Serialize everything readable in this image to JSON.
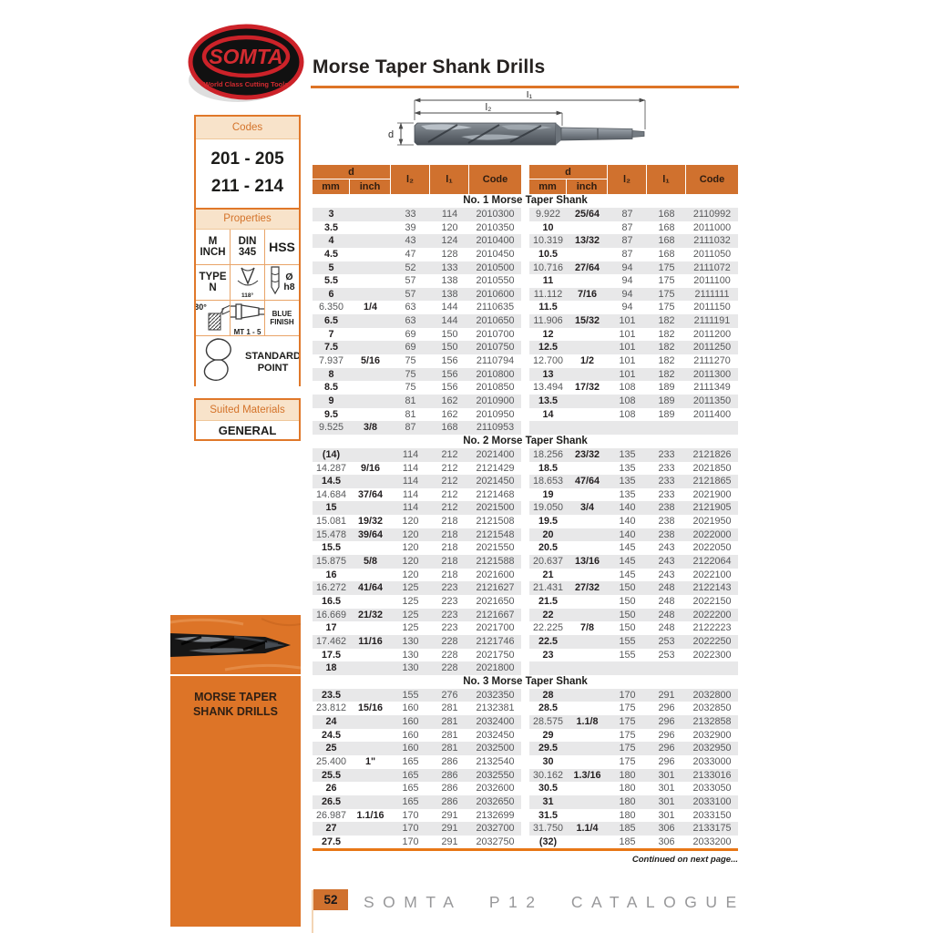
{
  "logo": {
    "name": "SOMTA",
    "tagline": "World Class Cutting Tools"
  },
  "page_title": "Morse Taper Shank Drills",
  "sidebar": {
    "codes": {
      "title": "Codes",
      "lines": [
        "201 - 205",
        "211 - 214"
      ]
    },
    "properties": {
      "title": "Properties",
      "grid": [
        {
          "name": "metric-inch",
          "lines": [
            "M",
            "INCH"
          ]
        },
        {
          "name": "din-345",
          "lines": [
            "DIN",
            "345"
          ]
        },
        {
          "name": "hss",
          "lines": [
            "HSS"
          ]
        },
        {
          "name": "type-n",
          "lines": [
            "TYPE",
            "N"
          ]
        },
        {
          "name": "point-angle-118",
          "icon": "point-118-icon",
          "label": "118°",
          "layout": "col"
        },
        {
          "name": "tolerance-h8",
          "icon": "h8-icon",
          "lines": [
            "Ø",
            "h8"
          ],
          "layout": "row"
        },
        {
          "name": "helix-angle-30",
          "icon": "helix-30-icon",
          "label": "30°",
          "layout": "label-left"
        },
        {
          "name": "morse-taper-range",
          "icon": "taper-icon",
          "label": "MT 1 - 5",
          "layout": "col"
        },
        {
          "name": "blue-finish",
          "lines": [
            "BLUE",
            "FINISH"
          ]
        }
      ],
      "footer_cell": {
        "name": "standard-point",
        "icon": "standard-point-icon",
        "label": "STANDARD POINT",
        "layout": "foot"
      }
    },
    "suited_materials": {
      "title": "Suited Materials",
      "value": "GENERAL"
    },
    "category_panel": {
      "label": "MORSE TAPER SHANK DRILLS"
    }
  },
  "diagram": {
    "l1": "l₁",
    "l2": "l₂",
    "d": "d"
  },
  "table": {
    "headers": {
      "d": "d",
      "mm": "mm",
      "inch": "inch",
      "l2": "l₂",
      "l1": "l₁",
      "code": "Code"
    },
    "sections": [
      {
        "title": "No. 1 Morse Taper Shank",
        "left": [
          [
            "3",
            "",
            "33",
            "114",
            "2010300"
          ],
          [
            "3.5",
            "",
            "39",
            "120",
            "2010350"
          ],
          [
            "4",
            "",
            "43",
            "124",
            "2010400"
          ],
          [
            "4.5",
            "",
            "47",
            "128",
            "2010450"
          ],
          [
            "5",
            "",
            "52",
            "133",
            "2010500"
          ],
          [
            "5.5",
            "",
            "57",
            "138",
            "2010550"
          ],
          [
            "6",
            "",
            "57",
            "138",
            "2010600"
          ],
          [
            "6.350",
            "1/4",
            "63",
            "144",
            "2110635"
          ],
          [
            "6.5",
            "",
            "63",
            "144",
            "2010650"
          ],
          [
            "7",
            "",
            "69",
            "150",
            "2010700"
          ],
          [
            "7.5",
            "",
            "69",
            "150",
            "2010750"
          ],
          [
            "7.937",
            "5/16",
            "75",
            "156",
            "2110794"
          ],
          [
            "8",
            "",
            "75",
            "156",
            "2010800"
          ],
          [
            "8.5",
            "",
            "75",
            "156",
            "2010850"
          ],
          [
            "9",
            "",
            "81",
            "162",
            "2010900"
          ],
          [
            "9.5",
            "",
            "81",
            "162",
            "2010950"
          ],
          [
            "9.525",
            "3/8",
            "87",
            "168",
            "2110953"
          ]
        ],
        "right": [
          [
            "9.922",
            "25/64",
            "87",
            "168",
            "2110992"
          ],
          [
            "10",
            "",
            "87",
            "168",
            "2011000"
          ],
          [
            "10.319",
            "13/32",
            "87",
            "168",
            "2111032"
          ],
          [
            "10.5",
            "",
            "87",
            "168",
            "2011050"
          ],
          [
            "10.716",
            "27/64",
            "94",
            "175",
            "2111072"
          ],
          [
            "11",
            "",
            "94",
            "175",
            "2011100"
          ],
          [
            "11.112",
            "7/16",
            "94",
            "175",
            "2111111"
          ],
          [
            "11.5",
            "",
            "94",
            "175",
            "2011150"
          ],
          [
            "11.906",
            "15/32",
            "101",
            "182",
            "2111191"
          ],
          [
            "12",
            "",
            "101",
            "182",
            "2011200"
          ],
          [
            "12.5",
            "",
            "101",
            "182",
            "2011250"
          ],
          [
            "12.700",
            "1/2",
            "101",
            "182",
            "2111270"
          ],
          [
            "13",
            "",
            "101",
            "182",
            "2011300"
          ],
          [
            "13.494",
            "17/32",
            "108",
            "189",
            "2111349"
          ],
          [
            "13.5",
            "",
            "108",
            "189",
            "2011350"
          ],
          [
            "14",
            "",
            "108",
            "189",
            "2011400"
          ],
          [
            "",
            "",
            "",
            "",
            ""
          ]
        ]
      },
      {
        "title": "No. 2 Morse Taper Shank",
        "left": [
          [
            "(14)",
            "",
            "114",
            "212",
            "2021400"
          ],
          [
            "14.287",
            "9/16",
            "114",
            "212",
            "2121429"
          ],
          [
            "14.5",
            "",
            "114",
            "212",
            "2021450"
          ],
          [
            "14.684",
            "37/64",
            "114",
            "212",
            "2121468"
          ],
          [
            "15",
            "",
            "114",
            "212",
            "2021500"
          ],
          [
            "15.081",
            "19/32",
            "120",
            "218",
            "2121508"
          ],
          [
            "15.478",
            "39/64",
            "120",
            "218",
            "2121548"
          ],
          [
            "15.5",
            "",
            "120",
            "218",
            "2021550"
          ],
          [
            "15.875",
            "5/8",
            "120",
            "218",
            "2121588"
          ],
          [
            "16",
            "",
            "120",
            "218",
            "2021600"
          ],
          [
            "16.272",
            "41/64",
            "125",
            "223",
            "2121627"
          ],
          [
            "16.5",
            "",
            "125",
            "223",
            "2021650"
          ],
          [
            "16.669",
            "21/32",
            "125",
            "223",
            "2121667"
          ],
          [
            "17",
            "",
            "125",
            "223",
            "2021700"
          ],
          [
            "17.462",
            "11/16",
            "130",
            "228",
            "2121746"
          ],
          [
            "17.5",
            "",
            "130",
            "228",
            "2021750"
          ],
          [
            "18",
            "",
            "130",
            "228",
            "2021800"
          ]
        ],
        "right": [
          [
            "18.256",
            "23/32",
            "135",
            "233",
            "2121826"
          ],
          [
            "18.5",
            "",
            "135",
            "233",
            "2021850"
          ],
          [
            "18.653",
            "47/64",
            "135",
            "233",
            "2121865"
          ],
          [
            "19",
            "",
            "135",
            "233",
            "2021900"
          ],
          [
            "19.050",
            "3/4",
            "140",
            "238",
            "2121905"
          ],
          [
            "19.5",
            "",
            "140",
            "238",
            "2021950"
          ],
          [
            "20",
            "",
            "140",
            "238",
            "2022000"
          ],
          [
            "20.5",
            "",
            "145",
            "243",
            "2022050"
          ],
          [
            "20.637",
            "13/16",
            "145",
            "243",
            "2122064"
          ],
          [
            "21",
            "",
            "145",
            "243",
            "2022100"
          ],
          [
            "21.431",
            "27/32",
            "150",
            "248",
            "2122143"
          ],
          [
            "21.5",
            "",
            "150",
            "248",
            "2022150"
          ],
          [
            "22",
            "",
            "150",
            "248",
            "2022200"
          ],
          [
            "22.225",
            "7/8",
            "150",
            "248",
            "2122223"
          ],
          [
            "22.5",
            "",
            "155",
            "253",
            "2022250"
          ],
          [
            "23",
            "",
            "155",
            "253",
            "2022300"
          ],
          [
            "",
            "",
            "",
            "",
            ""
          ]
        ]
      },
      {
        "title": "No. 3 Morse Taper Shank",
        "left": [
          [
            "23.5",
            "",
            "155",
            "276",
            "2032350"
          ],
          [
            "23.812",
            "15/16",
            "160",
            "281",
            "2132381"
          ],
          [
            "24",
            "",
            "160",
            "281",
            "2032400"
          ],
          [
            "24.5",
            "",
            "160",
            "281",
            "2032450"
          ],
          [
            "25",
            "",
            "160",
            "281",
            "2032500"
          ],
          [
            "25.400",
            "1\"",
            "165",
            "286",
            "2132540"
          ],
          [
            "25.5",
            "",
            "165",
            "286",
            "2032550"
          ],
          [
            "26",
            "",
            "165",
            "286",
            "2032600"
          ],
          [
            "26.5",
            "",
            "165",
            "286",
            "2032650"
          ],
          [
            "26.987",
            "1.1/16",
            "170",
            "291",
            "2132699"
          ],
          [
            "27",
            "",
            "170",
            "291",
            "2032700"
          ],
          [
            "27.5",
            "",
            "170",
            "291",
            "2032750"
          ]
        ],
        "right": [
          [
            "28",
            "",
            "170",
            "291",
            "2032800"
          ],
          [
            "28.5",
            "",
            "175",
            "296",
            "2032850"
          ],
          [
            "28.575",
            "1.1/8",
            "175",
            "296",
            "2132858"
          ],
          [
            "29",
            "",
            "175",
            "296",
            "2032900"
          ],
          [
            "29.5",
            "",
            "175",
            "296",
            "2032950"
          ],
          [
            "30",
            "",
            "175",
            "296",
            "2033000"
          ],
          [
            "30.162",
            "1.3/16",
            "180",
            "301",
            "2133016"
          ],
          [
            "30.5",
            "",
            "180",
            "301",
            "2033050"
          ],
          [
            "31",
            "",
            "180",
            "301",
            "2033100"
          ],
          [
            "31.5",
            "",
            "180",
            "301",
            "2033150"
          ],
          [
            "31.750",
            "1.1/4",
            "185",
            "306",
            "2133175"
          ],
          [
            "(32)",
            "",
            "185",
            "306",
            "2033200"
          ]
        ]
      }
    ]
  },
  "continued_note": "Continued on next page...",
  "footer": {
    "page_number": "52",
    "catalogue": "SOMTA P12 CATALOGUE"
  }
}
